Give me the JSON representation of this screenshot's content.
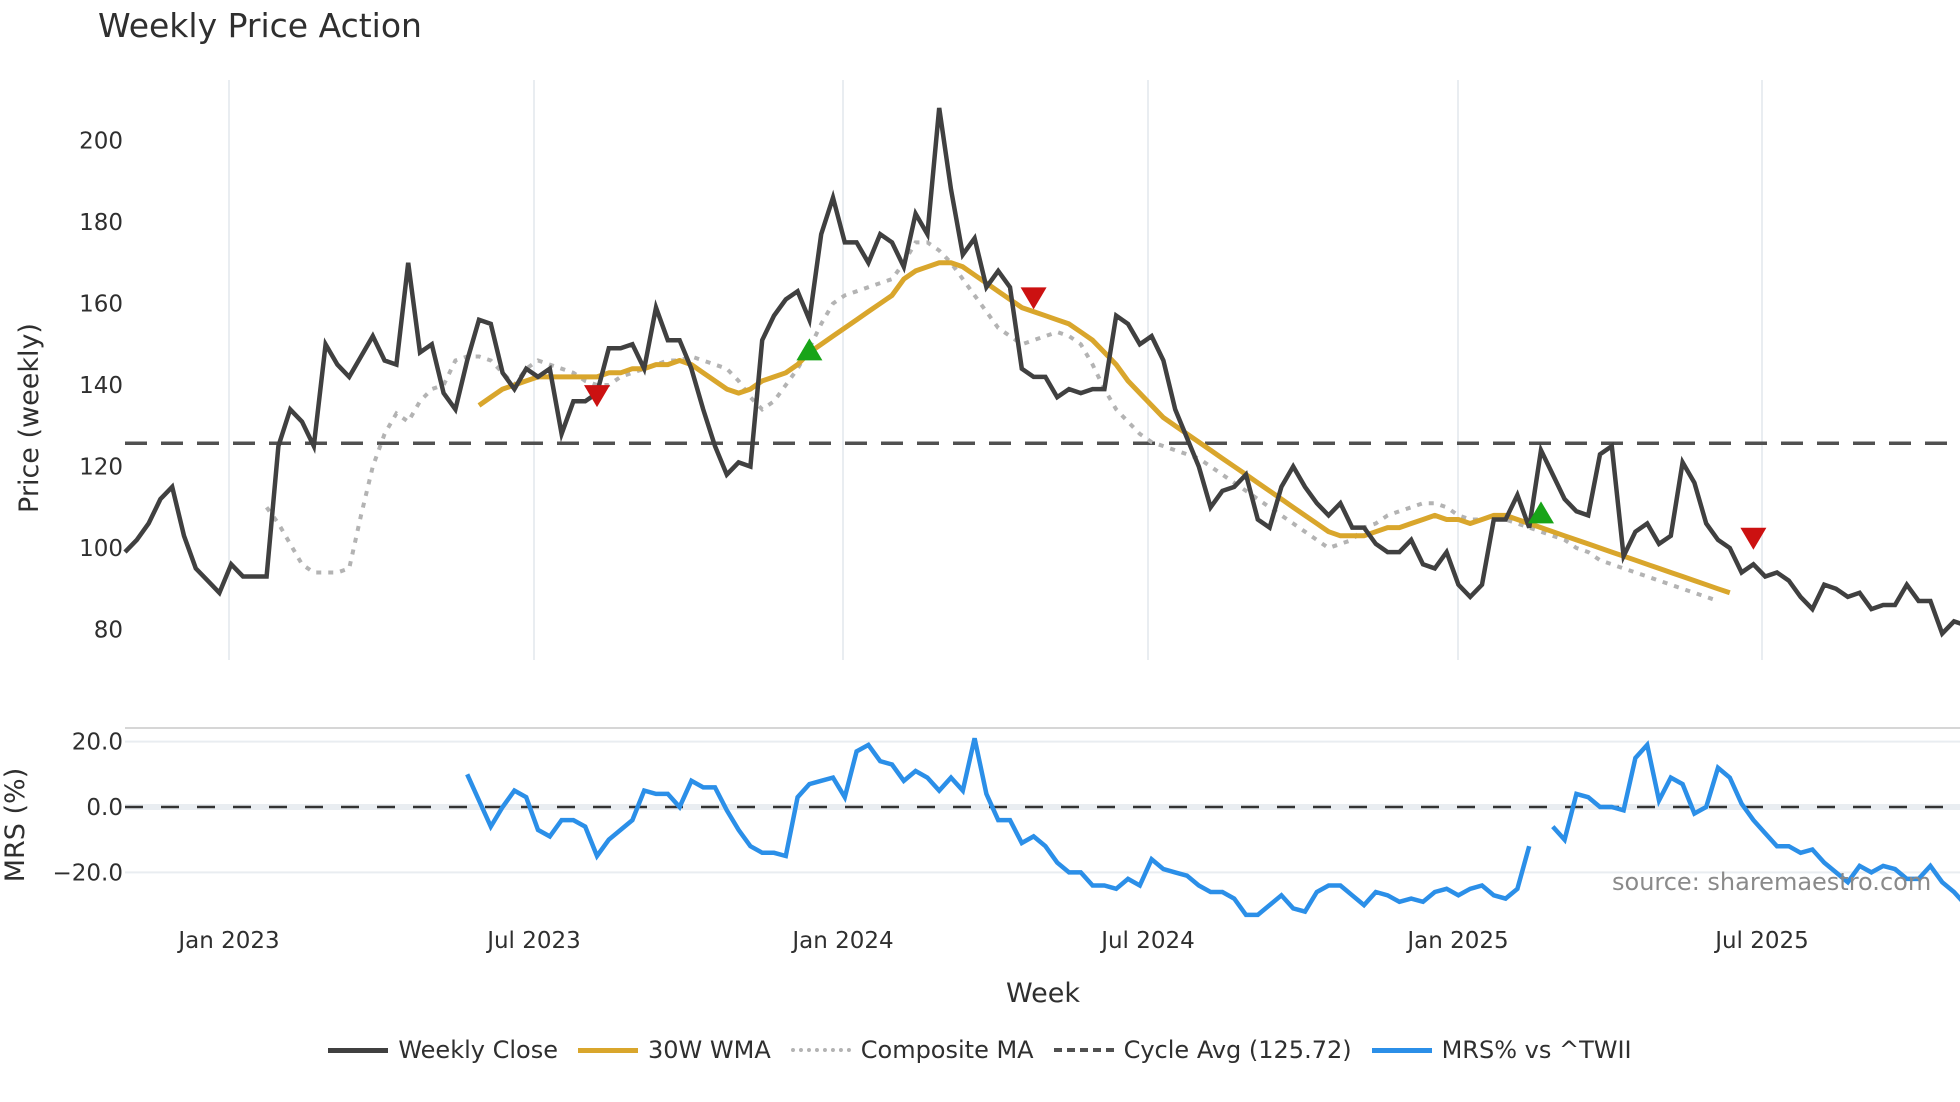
{
  "title": "Weekly Price Action",
  "source": "source: sharemaestro.com",
  "colors": {
    "close": "#404040",
    "wma": "#d9a62c",
    "composite": "#b3b3b3",
    "cycle": "#505050",
    "mrs": "#2b8fe8",
    "buy": "#18a418",
    "sell": "#cc1111",
    "grid": "#e9edf1"
  },
  "legend": [
    {
      "key": "close",
      "label": "Weekly Close",
      "style": "solid"
    },
    {
      "key": "wma",
      "label": "30W WMA",
      "style": "solid"
    },
    {
      "key": "composite",
      "label": "Composite MA",
      "style": "dotted"
    },
    {
      "key": "cycle",
      "label": "Cycle Avg (125.72)",
      "style": "dashed"
    },
    {
      "key": "mrs",
      "label": "MRS% vs ^TWII",
      "style": "solid"
    }
  ],
  "chart_data": [
    {
      "type": "line",
      "title": "Weekly Price Action",
      "xlabel": "Week",
      "ylabel": "Price (weekly)",
      "ylim": [
        72,
        215
      ],
      "yticks": [
        80,
        100,
        120,
        140,
        160,
        180,
        200
      ],
      "xticks": [
        "Jan 2023",
        "Jul 2023",
        "Jan 2024",
        "Jul 2024",
        "Jan 2025",
        "Jul 2025"
      ],
      "grid": true,
      "legend_position": "bottom",
      "cycle_avg": 125.72,
      "series": [
        {
          "name": "Weekly Close",
          "values": [
            99,
            102,
            106,
            112,
            115,
            103,
            95,
            92,
            89,
            96,
            93,
            93,
            93,
            125,
            134,
            131,
            125,
            150,
            145,
            142,
            147,
            152,
            146,
            145,
            170,
            148,
            150,
            138,
            134,
            146,
            156,
            155,
            143,
            139,
            144,
            142,
            144,
            128,
            136,
            136,
            138,
            149,
            149,
            150,
            144,
            159,
            151,
            151,
            144,
            134,
            125,
            118,
            121,
            120,
            151,
            157,
            161,
            163,
            156,
            177,
            186,
            175,
            175,
            170,
            177,
            175,
            169,
            182,
            177,
            208,
            188,
            172,
            176,
            164,
            168,
            164,
            144,
            142,
            142,
            137,
            139,
            138,
            139,
            139,
            157,
            155,
            150,
            152,
            146,
            134,
            127,
            120,
            110,
            114,
            115,
            118,
            107,
            105,
            115,
            120,
            115,
            111,
            108,
            111,
            105,
            105,
            101,
            99,
            99,
            102,
            96,
            95,
            99,
            91,
            88,
            91,
            107,
            107,
            113,
            105,
            124,
            118,
            112,
            109,
            108,
            123,
            125,
            98,
            104,
            106,
            101,
            103,
            121,
            116,
            106,
            102,
            100,
            94,
            96,
            93,
            94,
            92,
            88,
            85,
            91,
            90,
            88,
            89,
            85,
            86,
            86,
            91,
            87,
            87,
            79,
            82,
            81
          ]
        },
        {
          "name": "30W WMA",
          "start_index": 30,
          "values": [
            135,
            137,
            139,
            140,
            141,
            142,
            142,
            142,
            142,
            142,
            142,
            143,
            143,
            144,
            144,
            145,
            145,
            146,
            145,
            143,
            141,
            139,
            138,
            139,
            141,
            142,
            143,
            145,
            148,
            150,
            152,
            154,
            156,
            158,
            160,
            162,
            166,
            168,
            169,
            170,
            170,
            169,
            167,
            165,
            163,
            161,
            159,
            158,
            157,
            156,
            155,
            153,
            151,
            148,
            145,
            141,
            138,
            135,
            132,
            130,
            128,
            126,
            124,
            122,
            120,
            118,
            116,
            114,
            112,
            110,
            108,
            106,
            104,
            103,
            103,
            103,
            104,
            105,
            105,
            106,
            107,
            108,
            107,
            107,
            106,
            107,
            108,
            108,
            107,
            106,
            105,
            104,
            103,
            102,
            101,
            100,
            99,
            98,
            97,
            96,
            95,
            94,
            93,
            92,
            91,
            90,
            89
          ]
        },
        {
          "name": "Composite MA",
          "start_index": 12,
          "values": [
            110,
            106,
            101,
            96,
            94,
            94,
            94,
            95,
            108,
            120,
            128,
            133,
            131,
            136,
            139,
            140,
            146,
            147,
            147,
            146,
            143,
            140,
            144,
            146,
            145,
            144,
            143,
            141,
            140,
            140,
            142,
            143,
            144,
            145,
            146,
            146,
            147,
            146,
            145,
            144,
            141,
            137,
            134,
            136,
            140,
            144,
            149,
            155,
            160,
            162,
            163,
            164,
            165,
            166,
            170,
            175,
            175,
            173,
            170,
            166,
            162,
            158,
            154,
            152,
            150,
            151,
            152,
            153,
            152,
            150,
            145,
            139,
            134,
            131,
            128,
            126,
            125,
            124,
            123,
            122,
            120,
            118,
            116,
            114,
            112,
            110,
            108,
            106,
            104,
            102,
            100,
            101,
            102,
            105,
            106,
            108,
            109,
            110,
            111,
            111,
            110,
            108,
            107,
            107,
            108,
            107,
            106,
            105,
            104,
            103,
            102,
            100,
            99,
            97,
            96,
            95,
            94,
            93,
            92,
            91,
            90,
            89,
            88,
            87
          ]
        },
        {
          "name": "MRS% vs ^TWII",
          "start_index": 29,
          "gap_after_index": 135,
          "values": [
            10,
            2,
            -6,
            0,
            5,
            3,
            -7,
            -9,
            -4,
            -4,
            -6,
            -15,
            -10,
            -7,
            -4,
            5,
            4,
            4,
            0,
            8,
            6,
            6,
            -1,
            -7,
            -12,
            -14,
            -14,
            -15,
            3,
            7,
            8,
            9,
            3,
            17,
            19,
            14,
            13,
            8,
            11,
            9,
            5,
            9,
            5,
            21,
            4,
            -4,
            -4,
            -11,
            -9,
            -12,
            -17,
            -20,
            -20,
            -24,
            -24,
            -25,
            -22,
            -24,
            -16,
            -19,
            -20,
            -21,
            -24,
            -26,
            -26,
            -28,
            -33,
            -33,
            -30,
            -27,
            -31,
            -32,
            -26,
            -24,
            -24,
            -27,
            -30,
            -26,
            -27,
            -29,
            -28,
            -29,
            -26,
            -25,
            -27,
            -25,
            -24,
            -27,
            -28,
            -25,
            -12,
            null,
            -6,
            -10,
            4,
            3,
            0,
            0,
            -1,
            15,
            19,
            2,
            9,
            7,
            -2,
            0,
            12,
            9,
            1,
            -4,
            -8,
            -12,
            -12,
            -14,
            -13,
            -17,
            -20,
            -23,
            -18,
            -20,
            -18,
            -19,
            -22,
            -22,
            -18,
            -23,
            -26,
            -30,
            -28,
            -28
          ]
        }
      ],
      "signals": [
        {
          "type": "sell",
          "index": 40,
          "value": 138
        },
        {
          "type": "buy",
          "index": 58,
          "value": 148
        },
        {
          "type": "sell",
          "index": 77,
          "value": 162
        },
        {
          "type": "buy",
          "index": 120,
          "value": 108
        },
        {
          "type": "sell",
          "index": 138,
          "value": 103
        }
      ]
    },
    {
      "type": "line",
      "title": "",
      "ylabel": "MRS (%)",
      "ylim": [
        -33,
        24
      ],
      "yticks": [
        "20.0",
        "0.0",
        "−20.0"
      ],
      "reference_line": 0
    }
  ],
  "axes": {
    "price_ylabel": "Price (weekly)",
    "mrs_ylabel": "MRS (%)",
    "xlabel": "Week",
    "price_ticks": [
      "200",
      "180",
      "160",
      "140",
      "120",
      "100",
      "80"
    ],
    "mrs_ticks": [
      "20.0",
      "0.0",
      "−20.0"
    ],
    "x_ticks": [
      "Jan 2023",
      "Jul 2023",
      "Jan 2024",
      "Jul 2024",
      "Jan 2025",
      "Jul 2025"
    ]
  }
}
